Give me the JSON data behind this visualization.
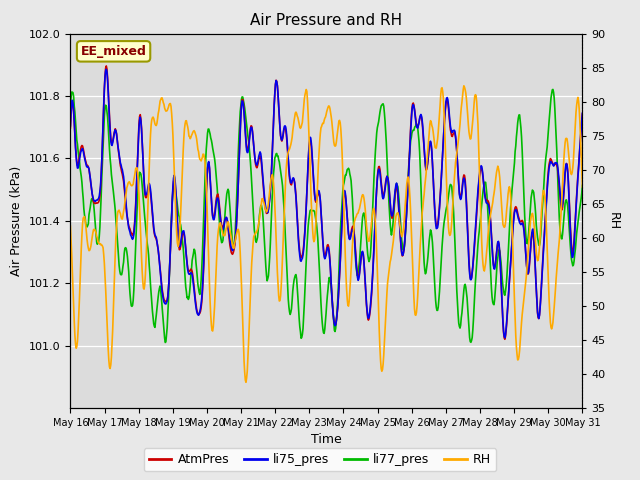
{
  "title": "Air Pressure and RH",
  "xlabel": "Time",
  "ylabel_left": "Air Pressure (kPa)",
  "ylabel_right": "RH",
  "annotation": "EE_mixed",
  "ylim_left": [
    100.8,
    102.0
  ],
  "ylim_right": [
    35,
    90
  ],
  "yticks_left": [
    101.0,
    101.2,
    101.4,
    101.6,
    101.8,
    102.0
  ],
  "yticks_right": [
    35,
    40,
    45,
    50,
    55,
    60,
    65,
    70,
    75,
    80,
    85,
    90
  ],
  "xtick_labels": [
    "May 16",
    "May 17",
    "May 18",
    "May 19",
    "May 20",
    "May 21",
    "May 22",
    "May 23",
    "May 24",
    "May 25",
    "May 26",
    "May 27",
    "May 28",
    "May 29",
    "May 30",
    "May 31"
  ],
  "color_atm": "#cc0000",
  "color_li75": "#0000ee",
  "color_li77": "#00bb00",
  "color_rh": "#ffaa00",
  "bg_color": "#dcdcdc",
  "fig_bg": "#e8e8e8",
  "legend_labels": [
    "AtmPres",
    "li75_pres",
    "li77_pres",
    "RH"
  ],
  "legend_colors": [
    "#cc0000",
    "#0000ee",
    "#00bb00",
    "#ffaa00"
  ],
  "annotation_bg": "#ffffcc",
  "annotation_border": "#999900",
  "annotation_color": "#880000",
  "title_fontsize": 11,
  "axis_fontsize": 9,
  "tick_fontsize": 8,
  "legend_fontsize": 9,
  "linewidth_pres": 1.2,
  "linewidth_rh": 1.2
}
